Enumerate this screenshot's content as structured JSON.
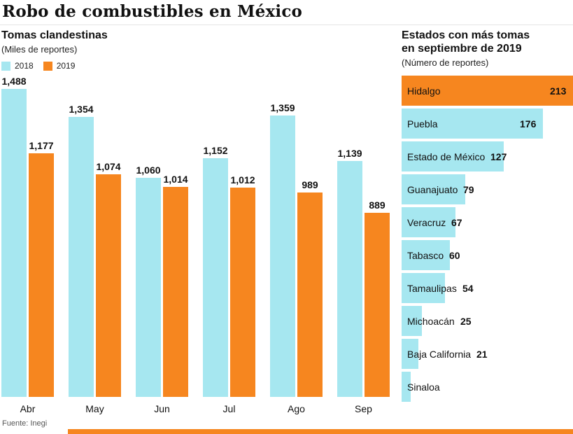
{
  "title": "Robo de combustibles en México",
  "source": "Fuente: Inegi",
  "colors": {
    "cyan": "#A6E7F0",
    "orange": "#F6861F",
    "text": "#111111"
  },
  "chart_data": [
    {
      "type": "bar",
      "orientation": "vertical",
      "title": "Tomas clandestinas",
      "subtitle": "(Miles de reportes)",
      "categories": [
        "Abr",
        "May",
        "Jun",
        "Jul",
        "Ago",
        "Sep"
      ],
      "series": [
        {
          "name": "2018",
          "color": "#A6E7F0",
          "values": [
            1488,
            1354,
            1060,
            1152,
            1359,
            1139
          ]
        },
        {
          "name": "2019",
          "color": "#F6861F",
          "values": [
            1177,
            1074,
            1014,
            1012,
            989,
            889
          ]
        }
      ],
      "ylim": [
        0,
        1488
      ],
      "grid": false,
      "legend_position": "top-left",
      "value_labels_shown": true
    },
    {
      "type": "bar",
      "orientation": "horizontal",
      "title": "Estados con más tomas en septiembre de 2019",
      "subtitle": "(Número de reportes)",
      "categories": [
        "Hidalgo",
        "Puebla",
        "Estado de México",
        "Guanajuato",
        "Veracruz",
        "Tabasco",
        "Tamaulipas",
        "Michoacán",
        "Baja California",
        "Sinaloa"
      ],
      "values": [
        213,
        176,
        127,
        79,
        67,
        60,
        54,
        25,
        21,
        null
      ],
      "xlim": [
        0,
        213
      ],
      "bar_color": "#A6E7F0",
      "highlight": {
        "category": "Hidalgo",
        "color": "#F6861F"
      },
      "legend_position": "none",
      "grid": false
    }
  ]
}
